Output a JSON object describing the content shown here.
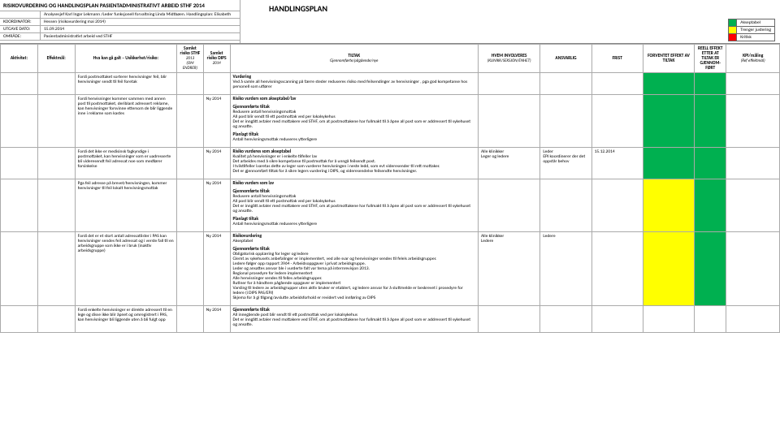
{
  "header": {
    "title": "RISIKOVURDERING OG HANDLINGSPLAN PASIENTADMINISTRATIVT ARBEID STHF 2014",
    "rows": [
      {
        "lbl": "",
        "val": "Analysesjef Karl Ingar Lekmann /Leder funksjonell forvaltning Linda Midtbøen. Handlingsplan: Elisabeth"
      },
      {
        "lbl": "KOORDINATOR:",
        "val": "Hessen (risikovurdering mai 2014)"
      },
      {
        "lbl": "UTGAVE DATO:",
        "val": "15.09.2014"
      },
      {
        "lbl": "OMRÅDE:",
        "val": "Pasientadministrativt arbeid ved STHF"
      }
    ],
    "hplan": "HANDLINGSPLAN",
    "legend": [
      {
        "color": "#00b050",
        "txt": "Akseptabel"
      },
      {
        "color": "#ffff00",
        "txt": "Trenger justering"
      },
      {
        "color": "#ff0000",
        "txt": "Kritisk"
      }
    ]
  },
  "cols": {
    "aktivitet": "Aktivitet:",
    "effektmal": "Effektmål:",
    "hva": "Hva kan gå galt – Usikkerhet/risiko:",
    "s1t": "Samlet risiko STHF",
    "s1y": "2013",
    "s1n": "(OM ENDRER)",
    "s2t": "Samlet risiko DIPS",
    "s2y": "2014",
    "tiltak": "TILTAK",
    "tiltak_sub": "Gjennomførte/pågående/nye",
    "hvem": "HVEM INVOLVERES",
    "hvem_sub": "(KLINIKK/SEKSJON/ENHET)",
    "ansvarlig": "ANSVARLIG",
    "frist": "FRIST",
    "forventet": "FORVENTET EFFEKT AV TILTAK",
    "reell": "REELL EFFEKT ETTER AT TILTAK ER GJENNOM-FØRT",
    "kpi": "KPI/måling",
    "kpi_sub": "(Ref effektmål)"
  },
  "rows": [
    {
      "hva": "Fordi postmottaket sorterer henvisninger feil, blir henvisninger sendt til feil foretak",
      "s1": "",
      "s2": "",
      "tiltak": [
        {
          "b": "Vurdering",
          "t": "Ved å samle all henvisningsscanning på færre steder reduseres risiko med feilsendinger av henvisninger , pga god kompetanse hos personell som utfører"
        }
      ],
      "hvem": "",
      "ansv": "",
      "frist": "",
      "forv_c": "#00b050",
      "reell_c": "#00b050"
    },
    {
      "hva": "Fordi henvisninger kommer sammen med annen post til postmottaket, deriblant adressert reklame, kan henvisninger forsvinne ettersom de blir liggende inne i reklame som kastes",
      "s1": "",
      "s2": "Ny 2014",
      "tiltak": [
        {
          "b": "Risiko vurders som akseptabel/lav",
          "t": ""
        },
        {
          "b": "Gjennomførte tiltak",
          "t": "Redusere antall henvisningsmottak\nAll post blir sendt til ett postmottak ved per lokalsykehus\nDet er inngått avtaler med mottakere ved STHF, om at postmottakene har fullmakt til å åpne all post som er addressert til sykehuset og ansatte."
        },
        {
          "b": "Planlagt tiltak",
          "t": "Antall henvisningsmottak reduseres ytterligere"
        }
      ],
      "hvem": "",
      "ansv": "",
      "frist": "",
      "forv_c": "#00b050",
      "reell_c": "#00b050"
    },
    {
      "hva": "Fordi det ikke er medisinsk fagkyndige i postmottaket, kan henvisninger som er uadresserte bli videresendt feil adressat noe som medfører forsinkelse",
      "s1": "",
      "s2": "Ny 2014",
      "tiltak": [
        {
          "b": "Risiko vurderes som akseptabel",
          "t": "Kvalitet på henvisninger er i enkelte tilfeller lav\nDet arbeides med å sikre kompetanse til postmottak for å unngå feilsendt post.\nI tvilstilfeller ivaretas dette av leger som vurderer henvisningen i neste ledd, som evt videresender til rett mottaker.\nDet er gjennomført tiltak for å sikre legers vurdering i DIPS, og videresendelse feilsendte henvisninger."
        }
      ],
      "hvem": "Alle klinikker\nLeger og ledere",
      "ansv": "Leder\nEPJ koordinerer der det oppstår behov",
      "frist": "15.12.2014",
      "forv_c": "#00b050",
      "reell_c": "#00b050"
    },
    {
      "hva": "Pga feil adresse på brevet/henvisningen, kommer henvisninger til feil lokalt henvisningsmottak",
      "s1": "",
      "s2": "Ny 2014",
      "tiltak": [
        {
          "b": "Risiko vurders som lav",
          "t": ""
        },
        {
          "b": "Gjennomførte tiltak",
          "t": "Redusere antall henvisningsmottak\nAll post blir sendt til ett postmottak ved per lokalsykehus\nDet er inngått avtaler med mottakere ved STHF, om at postmottakene har fullmakt til å åpne all post som er addressert til sykehuset og ansatte."
        },
        {
          "b": "Planlagt tiltak",
          "t": "Antall henvisningsmottak reduseres ytterligere"
        }
      ],
      "hvem": "",
      "ansv": "",
      "frist": "",
      "forv_c": "#ffff00",
      "reell_c": "#00b050"
    },
    {
      "hva": "Fordi det er et stort antall adressatlister i PAS kan henvisninger sendes feil adressat og i verste fall til en arbeidsgruppe som ikke er i bruk (inaktiv arbeidsgruppe)",
      "s1": "",
      "s2": "Ny 2014",
      "tiltak": [
        {
          "b": "Risikovurdering",
          "t": "Akseptabel"
        },
        {
          "b": "Gjennomførte tiltak",
          "t": "Obligatorisk opplæring for leger og ledere\nGlemt av sykehusets anbefalinger er implementert, ved alle svar og henvisninger sendes til felels arbeidsgrupper.\nLedere følger opp rapport 3964 - Arbeidsoppgaver i privat arbeidsgruppe.\nLeder og ansattes ansvar ble i vurderte falt var tema på internrevisjon 2013.\nRegional prosedyre for ledere implementert\nAlle henvisninger sendes til felles arbeidsgrupper.\nRutiner for å håndtere pågående oppgaver er implementert\nVarsling til ledere av arbeidsgrupper uten aktiv bruker er etablert, og ledere ansvar for å sluttmelde er beskrevet i prosedyre for ledere (i DIPS PAS/EPJ)\nSkjema for å gi tilgang/avslutte arbeidsforhold er revidert ved innføring av DIPS"
        }
      ],
      "hvem": "Alle klinikker\nLedere",
      "ansv": "Ledere",
      "frist": "",
      "forv_c": "#ffff00",
      "reell_c": "#00b050"
    },
    {
      "hva": "Fordi enkelte henvisninger er direkte adressert til en lege og disse ikke blir åpnet og omregistrert i PAS, kan henvisninger bli liggende uten å bli fulgt opp",
      "s1": "",
      "s2": "Ny 2014",
      "tiltak": [
        {
          "b": "Gjennomførte tiltak",
          "t": "All innegående post blir sendt til ett postmottak ved per lokalsykehus\nDet er inngått avtaler med mottakere ved STHF, om at postmottakene har fullmakt til å åpne all post som er addressert til sykehuset og ansatte."
        }
      ],
      "hvem": "",
      "ansv": "",
      "frist": "",
      "forv_c": "",
      "reell_c": ""
    }
  ]
}
